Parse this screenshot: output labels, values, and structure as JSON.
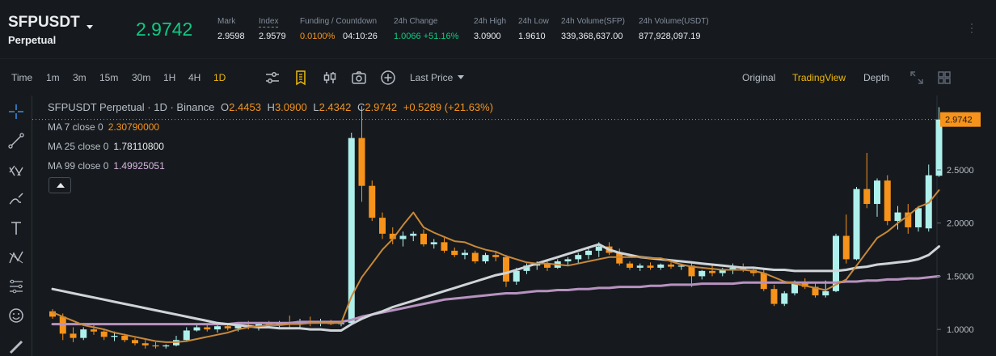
{
  "ticker": {
    "symbol": "SFPUSDT",
    "contract": "Perpetual",
    "last_price": "2.9742",
    "mark_label": "Mark",
    "mark_value": "2.9598",
    "index_label": "Index",
    "index_value": "2.9579",
    "funding_label": "Funding / Countdown",
    "funding_rate": "0.0100%",
    "countdown": "04:10:26",
    "change_label": "24h Change",
    "change_value": "1.0066 +51.16%",
    "high_label": "24h High",
    "high_value": "3.0900",
    "low_label": "24h Low",
    "low_value": "1.9610",
    "vol_sfp_label": "24h Volume(SFP)",
    "vol_sfp_value": "339,368,637.00",
    "vol_usdt_label": "24h Volume(USDT)",
    "vol_usdt_value": "877,928,097.19"
  },
  "toolbar": {
    "intervals": [
      "Time",
      "1m",
      "3m",
      "15m",
      "30m",
      "1H",
      "4H",
      "1D"
    ],
    "active_interval": "1D",
    "price_type": "Last Price",
    "views": [
      "Original",
      "TradingView",
      "Depth"
    ],
    "active_view": "TradingView"
  },
  "legend": {
    "title": "SFPUSDT Perpetual · 1D · Binance",
    "o_label": "O",
    "o_value": "2.4453",
    "h_label": "H",
    "h_value": "3.0900",
    "l_label": "L",
    "l_value": "2.4342",
    "c_label": "C",
    "c_value": "2.9742",
    "change": "+0.5289 (+21.63%)",
    "ma7_label": "MA 7 close 0",
    "ma7_value": "2.30790000",
    "ma25_label": "MA 25 close 0",
    "ma25_value": "1.78110800",
    "ma99_label": "MA 99 close 0",
    "ma99_value": "1.49925051"
  },
  "colors": {
    "up": "#aef0ec",
    "down": "#f7931a",
    "ma7": "#c8883a",
    "ma25": "#cfd4d8",
    "ma99": "#b792bf",
    "accent": "#f0b90b",
    "price_tag": "#f7931a"
  },
  "icons": [
    "crosshair-icon",
    "trend-line-icon",
    "fib-icon",
    "brush-icon",
    "text-icon",
    "pattern-icon",
    "measure-icon",
    "emoji-icon",
    "ruler-icon",
    "indicator-icon",
    "bookmark-icon",
    "candle-type-icon",
    "camera-icon",
    "add-icon",
    "expand-icon",
    "grid-icon"
  ],
  "chart_data": {
    "type": "candlestick",
    "title": "SFPUSDT Perpetual · 1D · Binance",
    "ylim": [
      0.75,
      3.2
    ],
    "y_ticks": [
      "2.5000",
      "2.0000",
      "1.5000",
      "1.0000"
    ],
    "y_tick_values": [
      2.5,
      2.0,
      1.5,
      1.0
    ],
    "current_price": 2.9742,
    "current_price_label": "2.9742",
    "candles": [
      [
        1.17,
        1.19,
        1.1,
        1.12
      ],
      [
        1.12,
        1.15,
        0.9,
        0.96
      ],
      [
        0.96,
        1.02,
        0.88,
        0.92
      ],
      [
        0.92,
        1.02,
        0.9,
        1.0
      ],
      [
        1.0,
        1.05,
        0.95,
        0.98
      ],
      [
        0.98,
        1.0,
        0.9,
        0.93
      ],
      [
        0.93,
        0.98,
        0.89,
        0.94
      ],
      [
        0.94,
        0.96,
        0.88,
        0.9
      ],
      [
        0.9,
        0.92,
        0.85,
        0.87
      ],
      [
        0.87,
        0.9,
        0.82,
        0.85
      ],
      [
        0.85,
        0.88,
        0.82,
        0.84
      ],
      [
        0.84,
        0.86,
        0.82,
        0.85
      ],
      [
        0.85,
        0.94,
        0.84,
        0.9
      ],
      [
        0.9,
        1.02,
        0.89,
        0.99
      ],
      [
        0.99,
        1.06,
        0.98,
        1.02
      ],
      [
        1.02,
        1.05,
        0.98,
        1.0
      ],
      [
        1.0,
        1.04,
        0.97,
        1.03
      ],
      [
        1.03,
        1.06,
        0.99,
        1.01
      ],
      [
        1.01,
        1.05,
        0.98,
        1.04
      ],
      [
        1.04,
        1.08,
        1.0,
        1.02
      ],
      [
        1.02,
        1.06,
        0.99,
        1.05
      ],
      [
        1.05,
        1.08,
        1.02,
        1.04
      ],
      [
        1.04,
        1.08,
        1.02,
        1.06
      ],
      [
        1.06,
        1.13,
        1.02,
        1.05
      ],
      [
        1.05,
        1.1,
        1.01,
        1.08
      ],
      [
        1.08,
        1.12,
        1.03,
        1.06
      ],
      [
        1.06,
        1.1,
        1.03,
        1.07
      ],
      [
        1.07,
        1.09,
        1.04,
        1.05
      ],
      [
        1.05,
        1.08,
        1.03,
        1.06
      ],
      [
        1.06,
        2.85,
        1.04,
        2.8
      ],
      [
        2.8,
        3.1,
        2.2,
        2.35
      ],
      [
        2.35,
        2.4,
        2.02,
        2.05
      ],
      [
        2.05,
        2.1,
        1.85,
        1.9
      ],
      [
        1.9,
        1.96,
        1.8,
        1.85
      ],
      [
        1.85,
        1.92,
        1.78,
        1.88
      ],
      [
        1.88,
        1.92,
        1.83,
        1.9
      ],
      [
        1.9,
        1.94,
        1.78,
        1.8
      ],
      [
        1.8,
        1.85,
        1.76,
        1.82
      ],
      [
        1.82,
        1.86,
        1.72,
        1.74
      ],
      [
        1.74,
        1.77,
        1.68,
        1.7
      ],
      [
        1.7,
        1.75,
        1.66,
        1.72
      ],
      [
        1.72,
        1.74,
        1.62,
        1.64
      ],
      [
        1.64,
        1.72,
        1.62,
        1.7
      ],
      [
        1.7,
        1.74,
        1.64,
        1.68
      ],
      [
        1.68,
        1.7,
        1.4,
        1.45
      ],
      [
        1.45,
        1.58,
        1.42,
        1.55
      ],
      [
        1.55,
        1.62,
        1.52,
        1.6
      ],
      [
        1.6,
        1.64,
        1.56,
        1.62
      ],
      [
        1.62,
        1.66,
        1.55,
        1.58
      ],
      [
        1.58,
        1.66,
        1.57,
        1.64
      ],
      [
        1.64,
        1.68,
        1.6,
        1.66
      ],
      [
        1.66,
        1.72,
        1.62,
        1.7
      ],
      [
        1.7,
        1.76,
        1.66,
        1.74
      ],
      [
        1.74,
        1.82,
        1.68,
        1.78
      ],
      [
        1.78,
        1.82,
        1.7,
        1.72
      ],
      [
        1.72,
        1.76,
        1.6,
        1.62
      ],
      [
        1.62,
        1.64,
        1.56,
        1.58
      ],
      [
        1.58,
        1.62,
        1.55,
        1.6
      ],
      [
        1.6,
        1.63,
        1.56,
        1.58
      ],
      [
        1.58,
        1.62,
        1.56,
        1.61
      ],
      [
        1.61,
        1.63,
        1.57,
        1.59
      ],
      [
        1.59,
        1.62,
        1.56,
        1.6
      ],
      [
        1.6,
        1.63,
        1.4,
        1.5
      ],
      [
        1.5,
        1.56,
        1.47,
        1.55
      ],
      [
        1.55,
        1.6,
        1.5,
        1.53
      ],
      [
        1.53,
        1.58,
        1.5,
        1.56
      ],
      [
        1.56,
        1.62,
        1.52,
        1.58
      ],
      [
        1.58,
        1.62,
        1.54,
        1.56
      ],
      [
        1.56,
        1.58,
        1.5,
        1.53
      ],
      [
        1.53,
        1.56,
        1.36,
        1.38
      ],
      [
        1.38,
        1.42,
        1.22,
        1.24
      ],
      [
        1.24,
        1.36,
        1.22,
        1.34
      ],
      [
        1.34,
        1.46,
        1.32,
        1.44
      ],
      [
        1.44,
        1.48,
        1.38,
        1.4
      ],
      [
        1.4,
        1.44,
        1.3,
        1.32
      ],
      [
        1.32,
        1.46,
        1.3,
        1.36
      ],
      [
        1.36,
        1.9,
        1.35,
        1.88
      ],
      [
        1.88,
        2.08,
        1.62,
        1.66
      ],
      [
        1.66,
        2.34,
        1.65,
        2.32
      ],
      [
        2.32,
        2.66,
        2.14,
        2.18
      ],
      [
        2.18,
        2.42,
        2.06,
        2.4
      ],
      [
        2.4,
        2.45,
        1.98,
        2.02
      ],
      [
        2.02,
        2.16,
        1.94,
        2.1
      ],
      [
        2.1,
        2.18,
        1.9,
        1.96
      ],
      [
        1.96,
        2.16,
        1.92,
        2.14
      ],
      [
        1.95,
        2.55,
        1.92,
        2.45
      ],
      [
        2.4453,
        3.09,
        2.4342,
        2.9742
      ]
    ],
    "ma7": [
      1.16,
      1.12,
      1.08,
      1.04,
      1.02,
      1.0,
      0.97,
      0.95,
      0.93,
      0.91,
      0.89,
      0.88,
      0.88,
      0.89,
      0.91,
      0.93,
      0.95,
      0.97,
      1.0,
      1.02,
      1.03,
      1.04,
      1.04,
      1.05,
      1.05,
      1.06,
      1.06,
      1.06,
      1.06,
      1.31,
      1.49,
      1.62,
      1.75,
      1.85,
      1.98,
      2.1,
      1.96,
      1.91,
      1.87,
      1.83,
      1.82,
      1.78,
      1.75,
      1.73,
      1.69,
      1.66,
      1.63,
      1.62,
      1.62,
      1.61,
      1.6,
      1.62,
      1.64,
      1.66,
      1.68,
      1.68,
      1.68,
      1.68,
      1.67,
      1.67,
      1.64,
      1.61,
      1.59,
      1.58,
      1.57,
      1.56,
      1.56,
      1.56,
      1.55,
      1.53,
      1.49,
      1.45,
      1.43,
      1.41,
      1.39,
      1.37,
      1.42,
      1.47,
      1.6,
      1.73,
      1.86,
      1.92,
      2.0,
      2.07,
      2.15,
      2.19,
      2.31
    ],
    "ma25": [
      1.38,
      1.36,
      1.34,
      1.32,
      1.3,
      1.28,
      1.26,
      1.24,
      1.22,
      1.2,
      1.18,
      1.16,
      1.14,
      1.12,
      1.1,
      1.08,
      1.06,
      1.05,
      1.04,
      1.03,
      1.02,
      1.02,
      1.01,
      1.01,
      1.01,
      1.0,
      1.0,
      0.99,
      0.99,
      1.05,
      1.1,
      1.14,
      1.17,
      1.21,
      1.24,
      1.27,
      1.3,
      1.33,
      1.36,
      1.39,
      1.42,
      1.45,
      1.48,
      1.51,
      1.53,
      1.56,
      1.59,
      1.62,
      1.65,
      1.68,
      1.71,
      1.74,
      1.77,
      1.8,
      1.75,
      1.72,
      1.7,
      1.68,
      1.67,
      1.66,
      1.65,
      1.64,
      1.63,
      1.62,
      1.61,
      1.6,
      1.59,
      1.58,
      1.58,
      1.57,
      1.56,
      1.56,
      1.55,
      1.55,
      1.55,
      1.55,
      1.55,
      1.56,
      1.58,
      1.59,
      1.61,
      1.62,
      1.63,
      1.64,
      1.66,
      1.7,
      1.78
    ],
    "ma99": [
      1.05,
      1.05,
      1.05,
      1.05,
      1.05,
      1.05,
      1.05,
      1.05,
      1.05,
      1.05,
      1.05,
      1.05,
      1.05,
      1.05,
      1.05,
      1.05,
      1.05,
      1.05,
      1.06,
      1.06,
      1.06,
      1.06,
      1.06,
      1.06,
      1.07,
      1.07,
      1.07,
      1.07,
      1.07,
      1.09,
      1.12,
      1.14,
      1.16,
      1.18,
      1.2,
      1.22,
      1.24,
      1.26,
      1.28,
      1.29,
      1.3,
      1.31,
      1.32,
      1.33,
      1.34,
      1.34,
      1.35,
      1.36,
      1.36,
      1.37,
      1.37,
      1.38,
      1.38,
      1.39,
      1.39,
      1.4,
      1.4,
      1.4,
      1.41,
      1.41,
      1.42,
      1.42,
      1.42,
      1.43,
      1.43,
      1.43,
      1.43,
      1.44,
      1.44,
      1.44,
      1.44,
      1.44,
      1.44,
      1.44,
      1.44,
      1.44,
      1.44,
      1.45,
      1.45,
      1.46,
      1.46,
      1.47,
      1.47,
      1.48,
      1.48,
      1.49,
      1.5
    ]
  }
}
